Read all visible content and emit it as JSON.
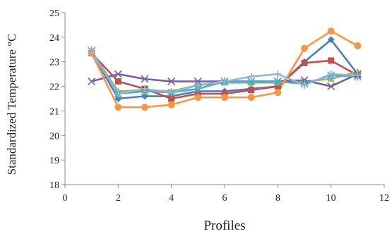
{
  "chart_data": {
    "type": "line",
    "title": "",
    "xlabel": "Profiles",
    "ylabel": "Standardized Temperature °C",
    "xlim": [
      0,
      12
    ],
    "ylim": [
      18,
      25
    ],
    "x_ticks": [
      0,
      2,
      4,
      6,
      8,
      10,
      12
    ],
    "y_ticks": [
      18,
      19,
      20,
      21,
      22,
      23,
      24,
      25
    ],
    "grid": false,
    "legend": "none",
    "x": [
      1,
      2,
      3,
      4,
      5,
      6,
      7,
      8,
      9,
      10,
      11
    ],
    "series": [
      {
        "color": "#4a7ebb",
        "marker": "diamond",
        "values": [
          23.4,
          21.5,
          21.6,
          21.6,
          21.8,
          21.8,
          21.9,
          22.0,
          23.0,
          23.9,
          22.5
        ]
      },
      {
        "color": "#c0504d",
        "marker": "square",
        "values": [
          23.35,
          22.2,
          21.9,
          21.5,
          21.7,
          21.7,
          21.85,
          22.0,
          22.95,
          23.05,
          22.45
        ]
      },
      {
        "color": "#9bbb59",
        "marker": "triangle",
        "values": [
          23.4,
          21.8,
          21.85,
          21.8,
          22.05,
          22.15,
          22.15,
          22.15,
          22.2,
          22.3,
          22.6
        ]
      },
      {
        "color": "#7a5d9e",
        "marker": "x",
        "values": [
          22.2,
          22.5,
          22.3,
          22.2,
          22.2,
          22.2,
          22.2,
          22.2,
          22.25,
          22.0,
          22.5
        ]
      },
      {
        "color": "#4bacc6",
        "marker": "star",
        "values": [
          23.45,
          21.7,
          21.8,
          21.75,
          21.9,
          22.2,
          22.2,
          22.2,
          22.1,
          22.45,
          22.4
        ]
      },
      {
        "color": "#f79646",
        "marker": "circle",
        "values": [
          23.35,
          21.15,
          21.15,
          21.25,
          21.55,
          21.55,
          21.55,
          21.75,
          23.55,
          24.25,
          23.65
        ]
      },
      {
        "color": "#95b3d7",
        "marker": "plus",
        "values": [
          23.4,
          21.7,
          21.9,
          21.75,
          22.05,
          22.2,
          22.4,
          22.5,
          22.05,
          22.5,
          22.45
        ]
      }
    ]
  }
}
